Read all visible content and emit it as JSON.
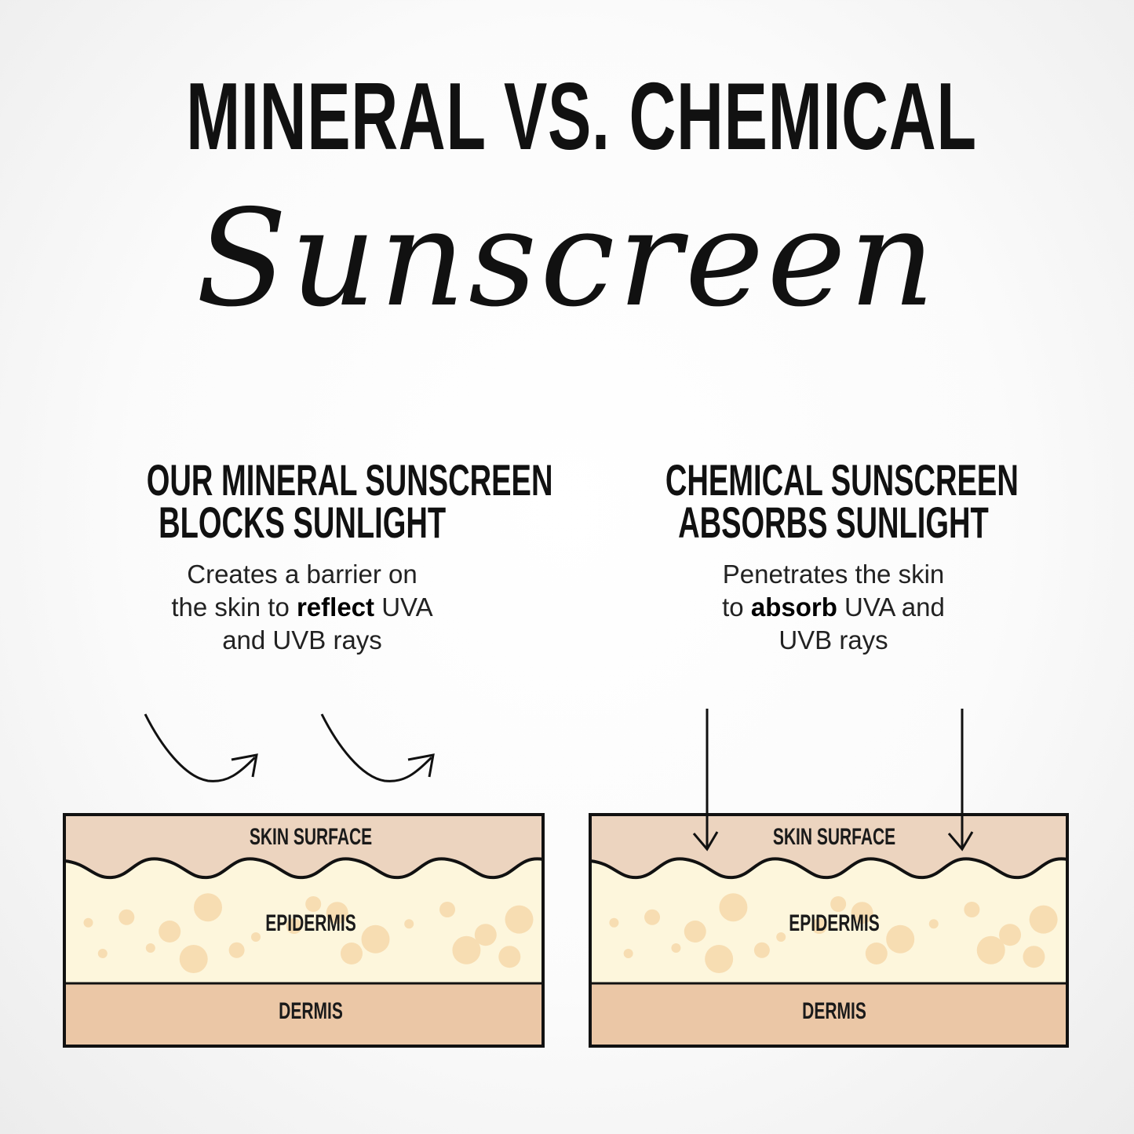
{
  "title": "MINERAL VS. CHEMICAL",
  "script_title": "Sunscreen",
  "left": {
    "heading_line1": "OUR MINERAL SUNSCREEN",
    "heading_line2": "BLOCKS SUNLIGHT",
    "body_line1": "Creates a barrier on",
    "body_pre": "the skin to ",
    "body_bold": "reflect",
    "body_post": " UVA",
    "body_line3": "and UVB rays"
  },
  "right": {
    "heading_line1": "CHEMICAL SUNSCREEN",
    "heading_line2": "ABSORBS SUNLIGHT",
    "body_line1": "Penetrates the skin",
    "body_pre": "to ",
    "body_bold": "absorb",
    "body_post": " UVA and",
    "body_line3": "UVB rays"
  },
  "layers": {
    "surface": "SKIN SURFACE",
    "epidermis": "EPIDERMIS",
    "dermis": "DERMIS"
  },
  "colors": {
    "surface": "#ecd4bf",
    "epidermis": "#fdf6dc",
    "dots": "#f7ddb2",
    "dermis": "#ebc7a6",
    "ink": "#111111"
  },
  "icons": {
    "left_arrows": "reflected-ray-arrow",
    "right_arrows": "penetrating-ray-arrow"
  }
}
